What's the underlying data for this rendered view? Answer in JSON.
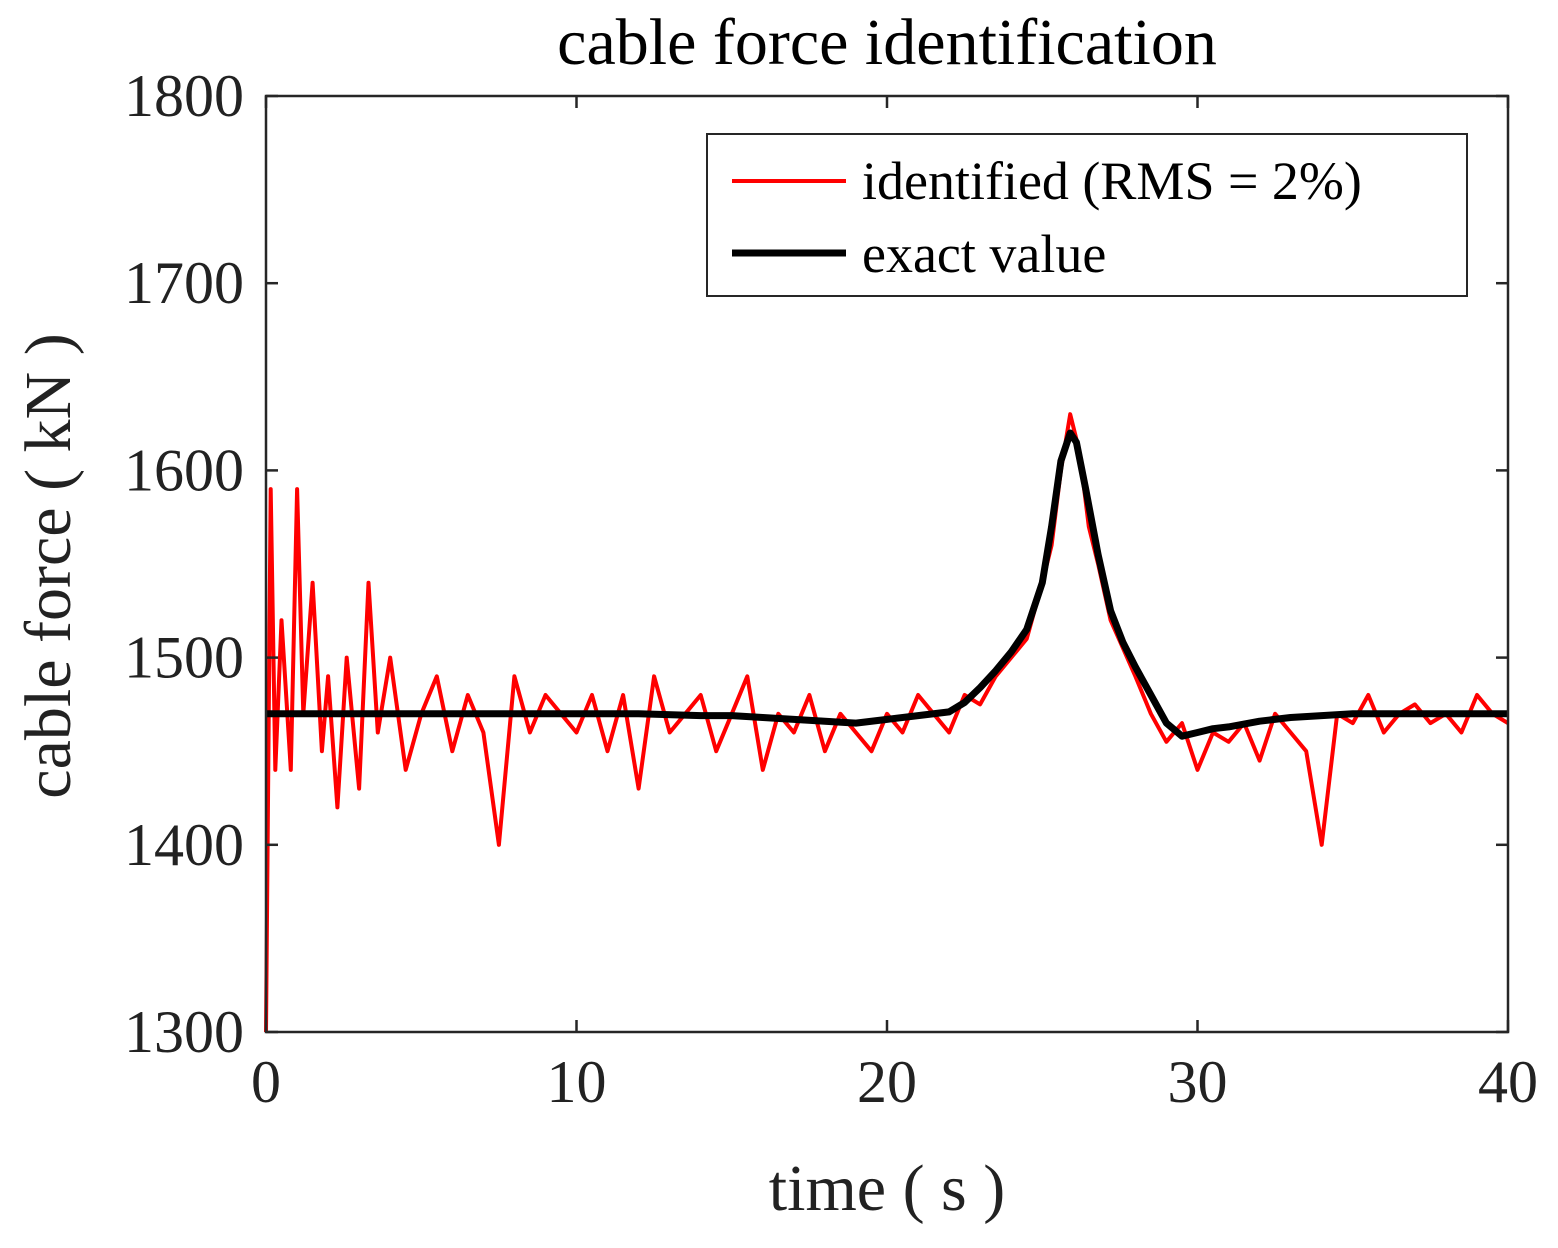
{
  "chart_data": {
    "type": "line",
    "title": "cable force identification",
    "xlabel": "time ( s )",
    "ylabel": "cable force ( kN )",
    "xlim": [
      0,
      40
    ],
    "ylim": [
      1300,
      1800
    ],
    "xticks": [
      0,
      10,
      20,
      30,
      40
    ],
    "yticks": [
      1300,
      1400,
      1500,
      1600,
      1700,
      1800
    ],
    "xtick_labels": [
      "0",
      "10",
      "20",
      "30",
      "40"
    ],
    "ytick_labels": [
      "1300",
      "1400",
      "1500",
      "1600",
      "1700",
      "1800"
    ],
    "grid": false,
    "legend_position": "top-right",
    "series": [
      {
        "name": "identified (RMS = 2%)",
        "color": "#ff0000",
        "x": [
          0,
          0.15,
          0.3,
          0.5,
          0.8,
          1.0,
          1.2,
          1.5,
          1.8,
          2.0,
          2.3,
          2.6,
          3.0,
          3.3,
          3.6,
          4.0,
          4.5,
          5.0,
          5.5,
          6.0,
          6.5,
          7.0,
          7.5,
          8.0,
          8.5,
          9.0,
          9.5,
          10.0,
          10.5,
          11.0,
          11.5,
          12.0,
          12.5,
          13.0,
          13.5,
          14.0,
          14.5,
          15.0,
          15.5,
          16.0,
          16.5,
          17.0,
          17.5,
          18.0,
          18.5,
          19.0,
          19.5,
          20.0,
          20.5,
          21.0,
          21.5,
          22.0,
          22.5,
          23.0,
          23.5,
          24.0,
          24.5,
          25.0,
          25.3,
          25.6,
          25.9,
          26.2,
          26.5,
          26.8,
          27.2,
          27.6,
          28.0,
          28.5,
          29.0,
          29.5,
          30.0,
          30.5,
          31.0,
          31.5,
          32.0,
          32.5,
          33.0,
          33.5,
          34.0,
          34.5,
          35.0,
          35.5,
          36.0,
          36.5,
          37.0,
          37.5,
          38.0,
          38.5,
          39.0,
          39.5,
          40.0
        ],
        "y": [
          1300,
          1590,
          1440,
          1520,
          1440,
          1590,
          1470,
          1540,
          1450,
          1490,
          1420,
          1500,
          1430,
          1540,
          1460,
          1500,
          1440,
          1470,
          1490,
          1450,
          1480,
          1460,
          1400,
          1490,
          1460,
          1480,
          1470,
          1460,
          1480,
          1450,
          1480,
          1430,
          1490,
          1460,
          1470,
          1480,
          1450,
          1470,
          1490,
          1440,
          1470,
          1460,
          1480,
          1450,
          1470,
          1460,
          1450,
          1470,
          1460,
          1480,
          1470,
          1460,
          1480,
          1475,
          1490,
          1500,
          1510,
          1540,
          1560,
          1600,
          1630,
          1610,
          1570,
          1550,
          1520,
          1505,
          1490,
          1470,
          1455,
          1465,
          1440,
          1460,
          1455,
          1465,
          1445,
          1470,
          1460,
          1450,
          1400,
          1470,
          1465,
          1480,
          1460,
          1470,
          1475,
          1465,
          1470,
          1460,
          1480,
          1470,
          1465
        ]
      },
      {
        "name": "exact value",
        "color": "#000000",
        "x": [
          0,
          2,
          4,
          6,
          8,
          10,
          12,
          14,
          15,
          16,
          17,
          18,
          19,
          20,
          21,
          22,
          22.5,
          23,
          23.5,
          24,
          24.5,
          25,
          25.3,
          25.6,
          25.9,
          26.1,
          26.4,
          26.8,
          27.2,
          27.6,
          28.0,
          28.5,
          29.0,
          29.5,
          30.0,
          30.5,
          31,
          32,
          33,
          34,
          35,
          36,
          38,
          40
        ],
        "y": [
          1470,
          1470,
          1470,
          1470,
          1470,
          1470,
          1470,
          1469,
          1469,
          1468,
          1467,
          1466,
          1465,
          1467,
          1469,
          1471,
          1476,
          1484,
          1493,
          1503,
          1515,
          1540,
          1570,
          1605,
          1620,
          1615,
          1590,
          1555,
          1525,
          1508,
          1495,
          1480,
          1465,
          1458,
          1460,
          1462,
          1463,
          1466,
          1468,
          1469,
          1470,
          1470,
          1470,
          1470
        ]
      }
    ]
  }
}
